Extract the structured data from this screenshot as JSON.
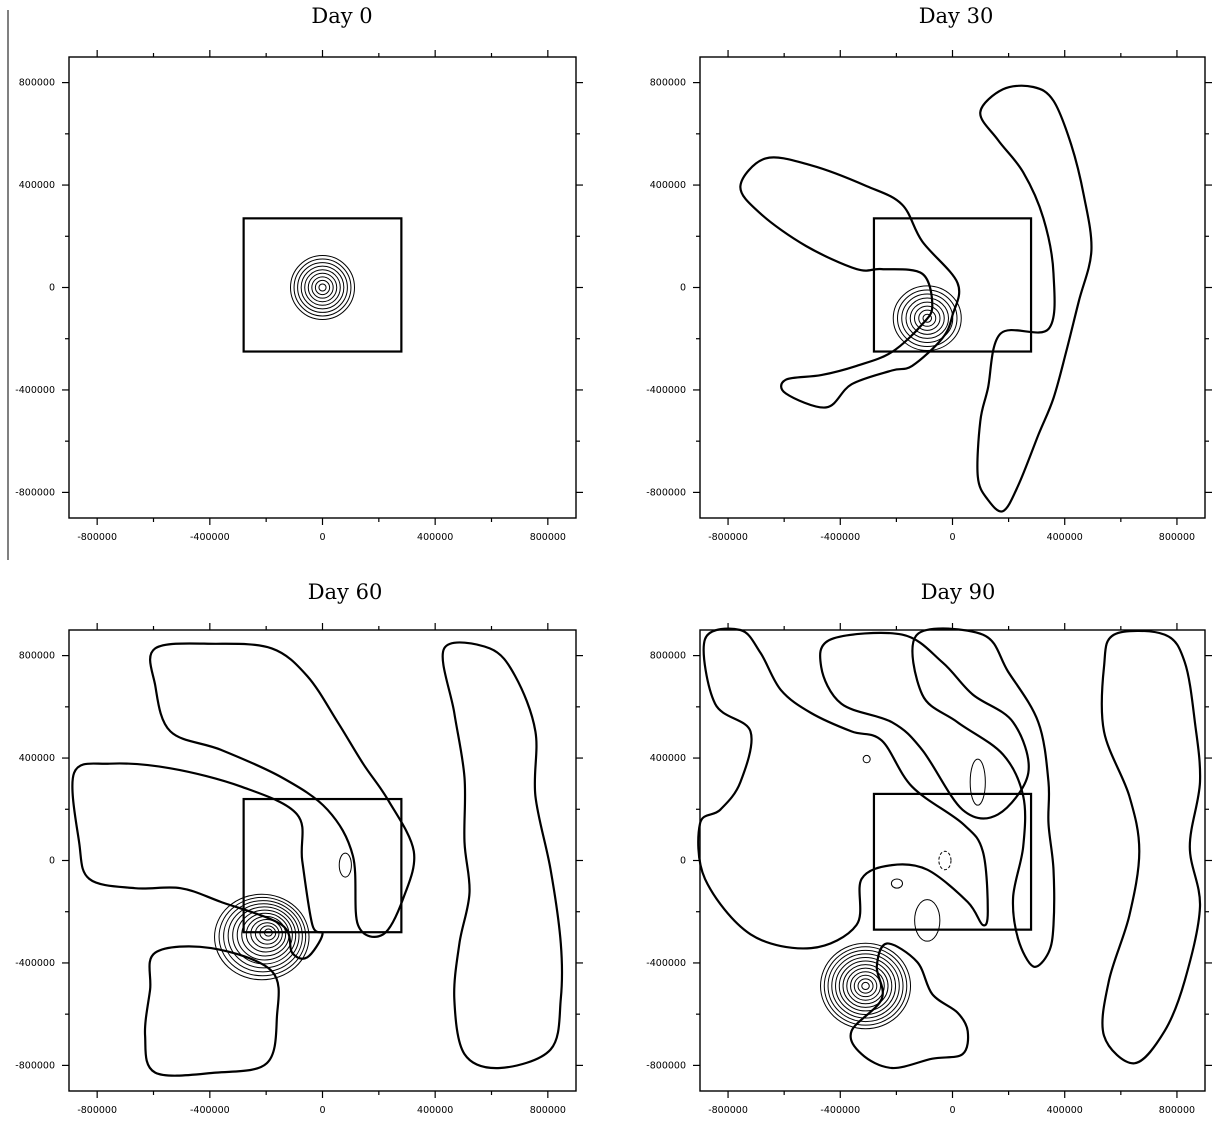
{
  "chart_data": [
    {
      "type": "contour",
      "title": "Day 0",
      "xlim": [
        -900000,
        900000
      ],
      "ylim": [
        -900000,
        900000
      ],
      "x_ticks": [
        "-800000",
        "-400000",
        "0",
        "400000",
        "800000"
      ],
      "y_ticks": [
        "800000",
        "400000",
        "0",
        "-400000",
        "-800000"
      ],
      "domain_box": [
        -280000,
        -250000,
        280000,
        270000
      ],
      "vortex_center": [
        0,
        0
      ],
      "contour_rings": 9
    },
    {
      "type": "contour",
      "title": "Day 30",
      "xlim": [
        -900000,
        900000
      ],
      "ylim": [
        -900000,
        900000
      ],
      "x_ticks": [
        "-800000",
        "-400000",
        "0",
        "400000",
        "800000"
      ],
      "y_ticks": [
        "800000",
        "400000",
        "0",
        "-400000",
        "-800000"
      ],
      "domain_box": [
        -280000,
        -250000,
        280000,
        270000
      ],
      "vortex_center": [
        -90000,
        -120000
      ],
      "contour_rings": 8
    },
    {
      "type": "contour",
      "title": "Day 60",
      "xlim": [
        -900000,
        900000
      ],
      "ylim": [
        -900000,
        900000
      ],
      "x_ticks": [
        "-800000",
        "-400000",
        "0",
        "400000",
        "800000"
      ],
      "y_ticks": [
        "800000",
        "400000",
        "0",
        "-400000",
        "-800000"
      ],
      "domain_box": [
        -280000,
        -280000,
        280000,
        240000
      ],
      "vortex_center": [
        -190000,
        -280000
      ],
      "contour_rings": 12
    },
    {
      "type": "contour",
      "title": "Day 90",
      "xlim": [
        -900000,
        900000
      ],
      "ylim": [
        -900000,
        900000
      ],
      "x_ticks": [
        "-800000",
        "-400000",
        "0",
        "400000",
        "800000"
      ],
      "y_ticks": [
        "800000",
        "400000",
        "0",
        "-400000",
        "-800000"
      ],
      "domain_box": [
        -280000,
        -270000,
        280000,
        260000
      ],
      "vortex_center": [
        -310000,
        -490000
      ],
      "contour_rings": 12
    }
  ]
}
